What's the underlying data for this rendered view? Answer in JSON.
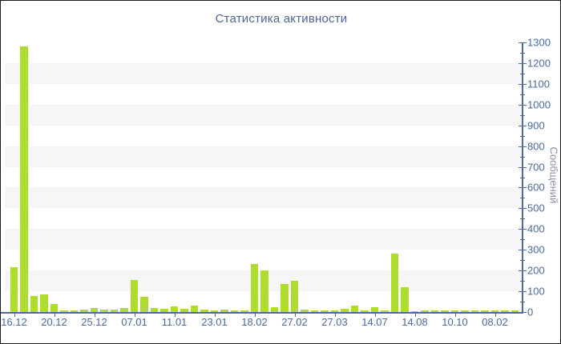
{
  "chart_data": {
    "type": "bar",
    "title": "Статистика активности",
    "ylabel": "Сообщений",
    "xlabel": "",
    "ylim": [
      0,
      1300
    ],
    "y_major_step": 100,
    "y_minor_step": 50,
    "grid": "alternating horizontal bands",
    "legend": "none",
    "x_tick_labels": [
      "16.12",
      "20.12",
      "25.12",
      "07.01",
      "11.01",
      "23.01",
      "18.02",
      "27.02",
      "27.03",
      "14.07",
      "14.08",
      "10.10",
      "08.02"
    ],
    "x_label_every_n_bars": 4,
    "values": [
      215,
      1280,
      76,
      84,
      37,
      8,
      6,
      10,
      20,
      13,
      13,
      18,
      155,
      73,
      18,
      15,
      28,
      15,
      32,
      12,
      6,
      12,
      6,
      6,
      230,
      200,
      22,
      135,
      150,
      12,
      9,
      6,
      6,
      14,
      32,
      8,
      22,
      8,
      280,
      118,
      5,
      8,
      8,
      9,
      6,
      6,
      6,
      6,
      6,
      6,
      8
    ],
    "colors": {
      "bar": "#aedd2f",
      "axis": "#4f6b9e",
      "tick_label": "#4a6aa0",
      "title": "#4a6693",
      "y_axis_title": "#8a92a8",
      "band_gray": "#f6f6f6",
      "background": "#ffffff"
    }
  }
}
